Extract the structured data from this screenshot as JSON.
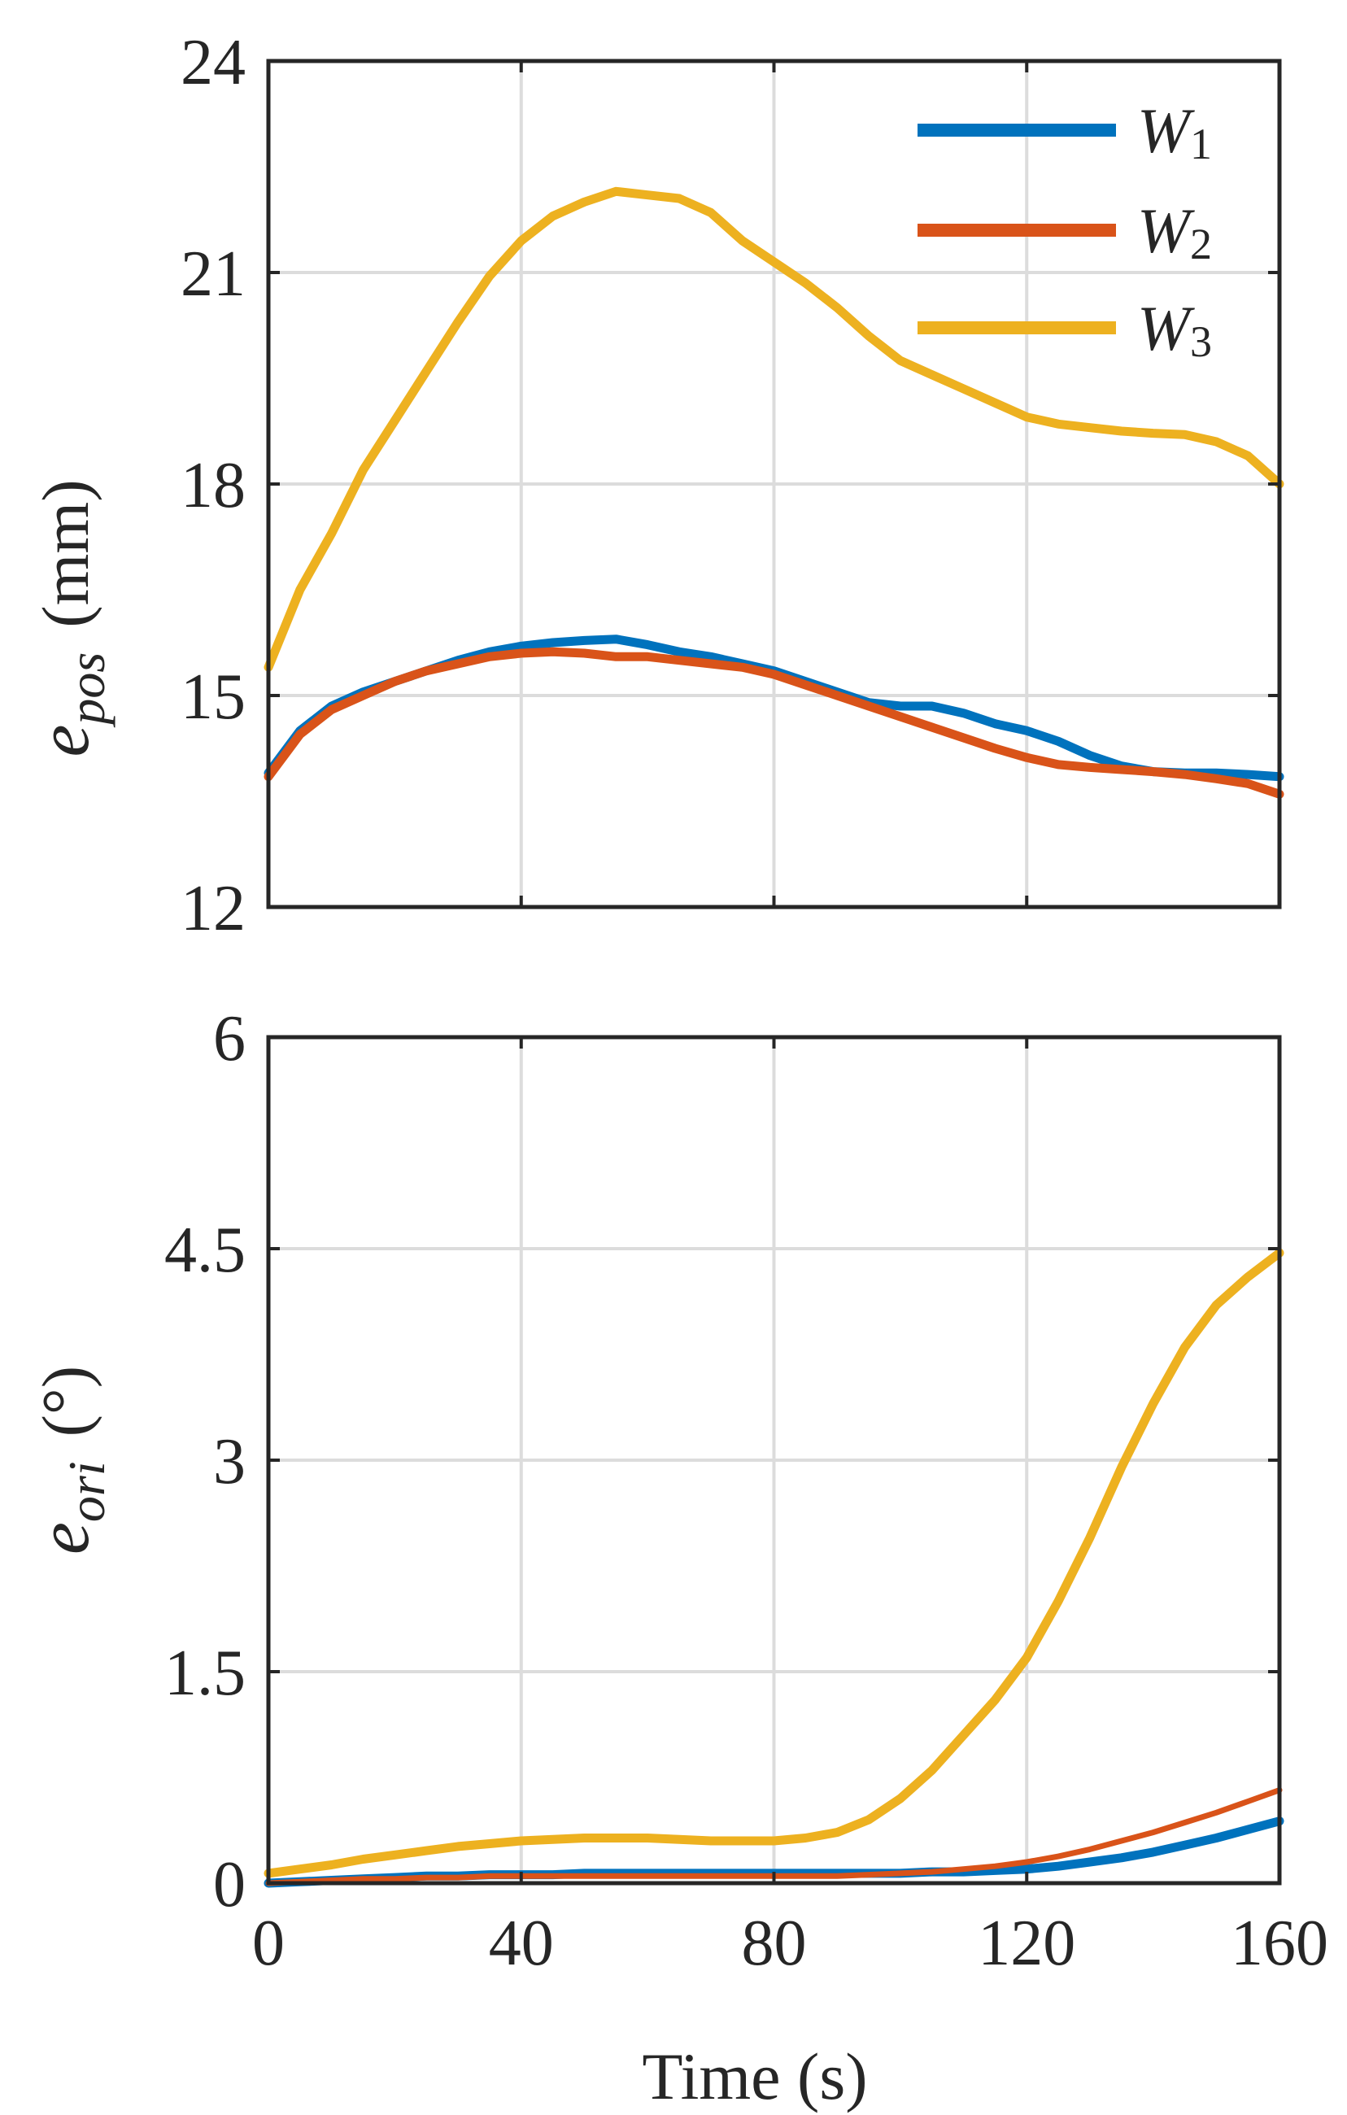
{
  "chart_data": [
    {
      "type": "line",
      "title": "",
      "xlabel": "",
      "ylabel": {
        "symbol": "e",
        "subscript": "pos",
        "unit": "(mm)"
      },
      "xlim": [
        0,
        160
      ],
      "ylim": [
        12,
        24
      ],
      "xticks": [
        0,
        40,
        80,
        120,
        160
      ],
      "yticks": [
        "12",
        "15",
        "18",
        "21",
        "24"
      ],
      "show_xtick_labels": false,
      "grid": true,
      "legend_position": "top-right",
      "x": [
        0,
        5,
        10,
        15,
        20,
        25,
        30,
        35,
        40,
        45,
        50,
        55,
        60,
        65,
        70,
        75,
        80,
        85,
        90,
        95,
        100,
        105,
        110,
        115,
        120,
        125,
        130,
        135,
        140,
        145,
        150,
        155,
        160
      ],
      "series": [
        {
          "name": "W",
          "subscript": "1",
          "color": "#0072BD",
          "values": [
            13.9,
            14.5,
            14.85,
            15.05,
            15.2,
            15.35,
            15.5,
            15.62,
            15.7,
            15.75,
            15.78,
            15.8,
            15.72,
            15.62,
            15.55,
            15.45,
            15.35,
            15.2,
            15.05,
            14.9,
            14.85,
            14.85,
            14.75,
            14.6,
            14.5,
            14.35,
            14.15,
            14.0,
            13.92,
            13.9,
            13.9,
            13.88,
            13.85
          ]
        },
        {
          "name": "W",
          "subscript": "2",
          "color": "#D95319",
          "values": [
            13.85,
            14.45,
            14.8,
            15.0,
            15.2,
            15.35,
            15.45,
            15.55,
            15.6,
            15.62,
            15.6,
            15.55,
            15.55,
            15.5,
            15.45,
            15.4,
            15.3,
            15.15,
            15.0,
            14.85,
            14.7,
            14.55,
            14.4,
            14.25,
            14.12,
            14.02,
            13.98,
            13.95,
            13.92,
            13.88,
            13.82,
            13.75,
            13.6
          ]
        },
        {
          "name": "W",
          "subscript": "3",
          "color": "#EDB120",
          "values": [
            15.4,
            16.5,
            17.3,
            18.2,
            18.9,
            19.6,
            20.3,
            20.95,
            21.45,
            21.8,
            22.0,
            22.15,
            22.1,
            22.05,
            21.85,
            21.45,
            21.15,
            20.85,
            20.5,
            20.1,
            19.75,
            19.55,
            19.35,
            19.15,
            18.95,
            18.85,
            18.8,
            18.75,
            18.72,
            18.7,
            18.6,
            18.4,
            18.0
          ]
        }
      ]
    },
    {
      "type": "line",
      "title": "",
      "xlabel": "Time (s)",
      "ylabel": {
        "symbol": "e",
        "subscript": "ori",
        "unit": "(°)"
      },
      "xlim": [
        0,
        160
      ],
      "ylim": [
        0,
        6
      ],
      "xticks": [
        0,
        40,
        80,
        120,
        160
      ],
      "xtick_labels": [
        "0",
        "40",
        "80",
        "120",
        "160"
      ],
      "yticks": [
        "0",
        "1.5",
        "3",
        "4.5",
        "6"
      ],
      "show_xtick_labels": true,
      "grid": true,
      "x": [
        0,
        5,
        10,
        15,
        20,
        25,
        30,
        35,
        40,
        45,
        50,
        55,
        60,
        65,
        70,
        75,
        80,
        85,
        90,
        95,
        100,
        105,
        110,
        115,
        120,
        125,
        130,
        135,
        140,
        145,
        150,
        155,
        160
      ],
      "series": [
        {
          "name": "W",
          "subscript": "1",
          "color": "#0072BD",
          "values": [
            0.0,
            0.01,
            0.02,
            0.03,
            0.04,
            0.05,
            0.05,
            0.06,
            0.06,
            0.06,
            0.07,
            0.07,
            0.07,
            0.07,
            0.07,
            0.07,
            0.07,
            0.07,
            0.07,
            0.07,
            0.07,
            0.08,
            0.08,
            0.09,
            0.1,
            0.12,
            0.15,
            0.18,
            0.22,
            0.27,
            0.32,
            0.38,
            0.44
          ]
        },
        {
          "name": "W",
          "subscript": "2",
          "color": "#D95319",
          "values": [
            0.0,
            0.01,
            0.02,
            0.03,
            0.03,
            0.04,
            0.04,
            0.05,
            0.05,
            0.05,
            0.05,
            0.05,
            0.05,
            0.05,
            0.05,
            0.05,
            0.05,
            0.05,
            0.05,
            0.06,
            0.07,
            0.08,
            0.1,
            0.12,
            0.15,
            0.19,
            0.24,
            0.3,
            0.36,
            0.43,
            0.5,
            0.58,
            0.66
          ]
        },
        {
          "name": "W",
          "subscript": "3",
          "color": "#EDB120",
          "values": [
            0.07,
            0.1,
            0.13,
            0.17,
            0.2,
            0.23,
            0.26,
            0.28,
            0.3,
            0.31,
            0.32,
            0.32,
            0.32,
            0.31,
            0.3,
            0.3,
            0.3,
            0.32,
            0.36,
            0.45,
            0.6,
            0.8,
            1.05,
            1.3,
            1.6,
            2.0,
            2.45,
            2.95,
            3.4,
            3.8,
            4.1,
            4.3,
            4.47
          ]
        }
      ]
    }
  ]
}
